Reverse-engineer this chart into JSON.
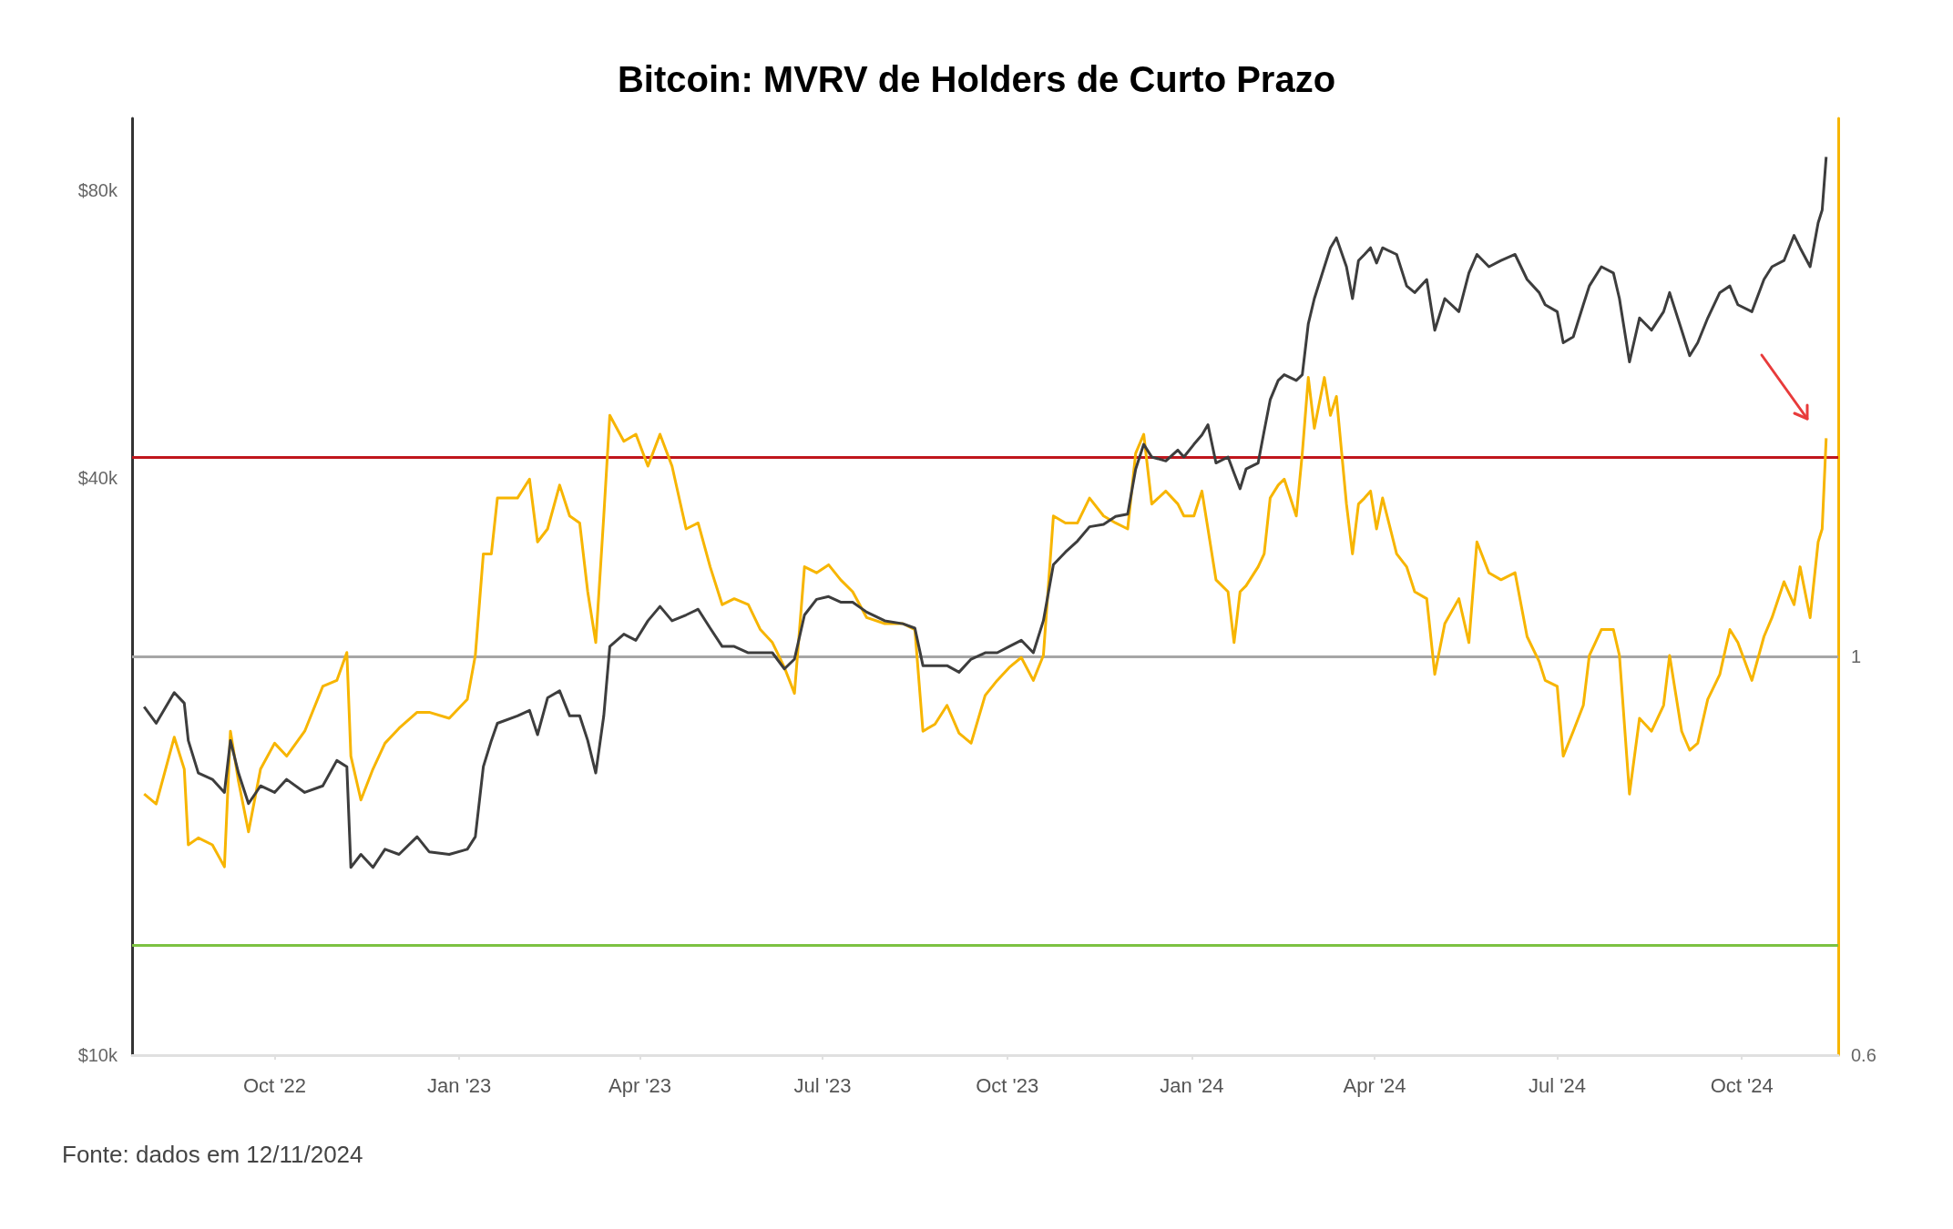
{
  "chart_data": {
    "type": "line",
    "title": "Bitcoin: MVRV de Holders de Curto Prazo",
    "log": "y",
    "marker": "none",
    "xlim": [
      "2022-07-22",
      "2024-11-18"
    ],
    "xticks": [
      {
        "value": "2022-10-01",
        "label": "Oct '22"
      },
      {
        "value": "2023-01-01",
        "label": "Jan '23"
      },
      {
        "value": "2023-04-01",
        "label": "Apr '23"
      },
      {
        "value": "2023-07-01",
        "label": "Jul '23"
      },
      {
        "value": "2023-10-01",
        "label": "Oct '23"
      },
      {
        "value": "2024-01-01",
        "label": "Jan '24"
      },
      {
        "value": "2024-04-01",
        "label": "Apr '24"
      },
      {
        "value": "2024-07-01",
        "label": "Jul '24"
      },
      {
        "value": "2024-10-01",
        "label": "Oct '24"
      }
    ],
    "ylim": [
      10000,
      95000
    ],
    "yticks": [
      {
        "value": 10000,
        "label": "$10k"
      },
      {
        "value": 40000,
        "label": "$40k"
      },
      {
        "value": 80000,
        "label": "$80k"
      }
    ],
    "y2lim": [
      0.6,
      1.54
    ],
    "y2ticks": [
      0.6,
      1
    ],
    "x": [
      "2022-07-28",
      "2022-08-03",
      "2022-08-12",
      "2022-08-17",
      "2022-08-19",
      "2022-08-24",
      "2022-08-31",
      "2022-09-06",
      "2022-09-09",
      "2022-09-13",
      "2022-09-18",
      "2022-09-24",
      "2022-10-01",
      "2022-10-07",
      "2022-10-16",
      "2022-10-25",
      "2022-11-01",
      "2022-11-06",
      "2022-11-08",
      "2022-11-13",
      "2022-11-19",
      "2022-11-25",
      "2022-12-02",
      "2022-12-11",
      "2022-12-17",
      "2022-12-27",
      "2023-01-05",
      "2023-01-09",
      "2023-01-13",
      "2023-01-17",
      "2023-01-20",
      "2023-01-30",
      "2023-02-05",
      "2023-02-09",
      "2023-02-14",
      "2023-02-20",
      "2023-02-25",
      "2023-03-02",
      "2023-03-06",
      "2023-03-10",
      "2023-03-14",
      "2023-03-17",
      "2023-03-24",
      "2023-03-30",
      "2023-04-05",
      "2023-04-11",
      "2023-04-17",
      "2023-04-24",
      "2023-04-30",
      "2023-05-06",
      "2023-05-12",
      "2023-05-18",
      "2023-05-25",
      "2023-05-31",
      "2023-06-06",
      "2023-06-12",
      "2023-06-17",
      "2023-06-22",
      "2023-06-28",
      "2023-07-04",
      "2023-07-10",
      "2023-07-16",
      "2023-07-23",
      "2023-08-01",
      "2023-08-10",
      "2023-08-16",
      "2023-08-20",
      "2023-08-26",
      "2023-09-01",
      "2023-09-07",
      "2023-09-13",
      "2023-09-20",
      "2023-09-26",
      "2023-10-02",
      "2023-10-08",
      "2023-10-14",
      "2023-10-19",
      "2023-10-24",
      "2023-10-30",
      "2023-11-05",
      "2023-11-11",
      "2023-11-18",
      "2023-11-24",
      "2023-11-30",
      "2023-12-04",
      "2023-12-08",
      "2023-12-12",
      "2023-12-19",
      "2023-12-25",
      "2023-12-28",
      "2024-01-02",
      "2024-01-06",
      "2024-01-09",
      "2024-01-13",
      "2024-01-19",
      "2024-01-22",
      "2024-01-25",
      "2024-01-28",
      "2024-02-03",
      "2024-02-06",
      "2024-02-09",
      "2024-02-13",
      "2024-02-16",
      "2024-02-22",
      "2024-02-25",
      "2024-02-28",
      "2024-03-02",
      "2024-03-07",
      "2024-03-10",
      "2024-03-13",
      "2024-03-18",
      "2024-03-21",
      "2024-03-24",
      "2024-03-27",
      "2024-03-30",
      "2024-04-02",
      "2024-04-05",
      "2024-04-12",
      "2024-04-17",
      "2024-04-21",
      "2024-04-27",
      "2024-05-01",
      "2024-05-06",
      "2024-05-13",
      "2024-05-18",
      "2024-05-22",
      "2024-05-28",
      "2024-06-03",
      "2024-06-10",
      "2024-06-16",
      "2024-06-22",
      "2024-06-25",
      "2024-07-01",
      "2024-07-04",
      "2024-07-09",
      "2024-07-14",
      "2024-07-17",
      "2024-07-23",
      "2024-07-29",
      "2024-08-01",
      "2024-08-06",
      "2024-08-11",
      "2024-08-17",
      "2024-08-23",
      "2024-08-26",
      "2024-09-01",
      "2024-09-05",
      "2024-09-09",
      "2024-09-14",
      "2024-09-20",
      "2024-09-25",
      "2024-09-29",
      "2024-10-06",
      "2024-10-12",
      "2024-10-16",
      "2024-10-22",
      "2024-10-27",
      "2024-10-30",
      "2024-11-04",
      "2024-11-08",
      "2024-11-10",
      "2024-11-12"
    ],
    "series": [
      {
        "color": "#3d3d3d",
        "values": [
          23100,
          22200,
          23900,
          23300,
          21300,
          19700,
          19400,
          18800,
          21300,
          19700,
          18300,
          19100,
          18800,
          19400,
          18800,
          19100,
          20300,
          20000,
          15700,
          16200,
          15700,
          16400,
          16200,
          16900,
          16300,
          16200,
          16400,
          16900,
          20000,
          21300,
          22200,
          22600,
          22900,
          21600,
          23600,
          24000,
          22600,
          22600,
          21300,
          19700,
          22600,
          26700,
          27500,
          27100,
          28400,
          29400,
          28400,
          28800,
          29200,
          27900,
          26700,
          26700,
          26300,
          26300,
          26300,
          25300,
          25900,
          28800,
          29900,
          30100,
          29700,
          29700,
          29000,
          28400,
          28200,
          27900,
          25500,
          25500,
          25500,
          25100,
          25900,
          26300,
          26300,
          26700,
          27100,
          26300,
          28400,
          32500,
          33500,
          34400,
          35600,
          35800,
          36500,
          36700,
          40900,
          43400,
          42100,
          41700,
          42800,
          42100,
          43400,
          44400,
          45500,
          41500,
          42100,
          40500,
          39000,
          40900,
          41500,
          44800,
          48300,
          50600,
          51300,
          50600,
          51300,
          58000,
          61600,
          66500,
          69600,
          71300,
          66500,
          61600,
          67500,
          68500,
          69600,
          67100,
          69600,
          68500,
          63500,
          62500,
          64500,
          57100,
          61600,
          59700,
          65500,
          68500,
          66500,
          67500,
          68500,
          64500,
          62500,
          60700,
          59700,
          55400,
          56200,
          60700,
          63500,
          66500,
          65500,
          61600,
          52900,
          58800,
          57100,
          59700,
          62500,
          57100,
          53700,
          55400,
          58800,
          62500,
          63500,
          60700,
          59700,
          64500,
          66500,
          67500,
          71700,
          69600,
          66500,
          73900,
          76200,
          86600
        ]
      },
      {
        "color": "#f7b500",
        "axis": "y2",
        "values": [
          0.862,
          0.852,
          0.919,
          0.887,
          0.811,
          0.818,
          0.811,
          0.789,
          0.925,
          0.875,
          0.824,
          0.887,
          0.913,
          0.9,
          0.925,
          0.97,
          0.976,
          1.004,
          0.9,
          0.856,
          0.887,
          0.913,
          0.928,
          0.944,
          0.944,
          0.938,
          0.957,
          1.001,
          1.103,
          1.103,
          1.159,
          1.159,
          1.178,
          1.115,
          1.128,
          1.172,
          1.141,
          1.134,
          1.065,
          1.014,
          1.141,
          1.242,
          1.216,
          1.223,
          1.191,
          1.223,
          1.191,
          1.128,
          1.134,
          1.09,
          1.052,
          1.058,
          1.052,
          1.027,
          1.014,
          0.989,
          0.963,
          1.09,
          1.084,
          1.092,
          1.077,
          1.065,
          1.039,
          1.033,
          1.033,
          1.027,
          0.925,
          0.932,
          0.951,
          0.923,
          0.913,
          0.961,
          0.976,
          0.989,
          0.999,
          0.976,
          1.001,
          1.141,
          1.134,
          1.134,
          1.159,
          1.141,
          1.134,
          1.128,
          1.204,
          1.223,
          1.153,
          1.166,
          1.153,
          1.141,
          1.141,
          1.166,
          1.128,
          1.077,
          1.065,
          1.014,
          1.065,
          1.071,
          1.09,
          1.103,
          1.159,
          1.172,
          1.178,
          1.141,
          1.204,
          1.28,
          1.229,
          1.28,
          1.242,
          1.261,
          1.153,
          1.103,
          1.153,
          1.159,
          1.166,
          1.128,
          1.159,
          1.103,
          1.09,
          1.065,
          1.058,
          0.982,
          1.033,
          1.058,
          1.014,
          1.115,
          1.084,
          1.077,
          1.084,
          1.02,
          0.995,
          0.976,
          0.97,
          0.9,
          0.925,
          0.951,
          1.001,
          1.027,
          1.027,
          1.001,
          0.862,
          0.938,
          0.925,
          0.951,
          1.001,
          0.925,
          0.906,
          0.913,
          0.957,
          0.982,
          1.027,
          1.014,
          0.976,
          1.02,
          1.039,
          1.075,
          1.052,
          1.09,
          1.039,
          1.115,
          1.128,
          1.219
        ]
      }
    ],
    "ref_lines": [
      {
        "axis": "y2",
        "value": 1.2,
        "color": "#c0161c"
      },
      {
        "axis": "y2",
        "value": 1,
        "color": "#a6a6a6"
      },
      {
        "axis": "y2",
        "value": 0.71,
        "color": "#7cc242"
      }
    ],
    "annotations": [
      "Fonte: dados em 12/11/2024"
    ]
  }
}
